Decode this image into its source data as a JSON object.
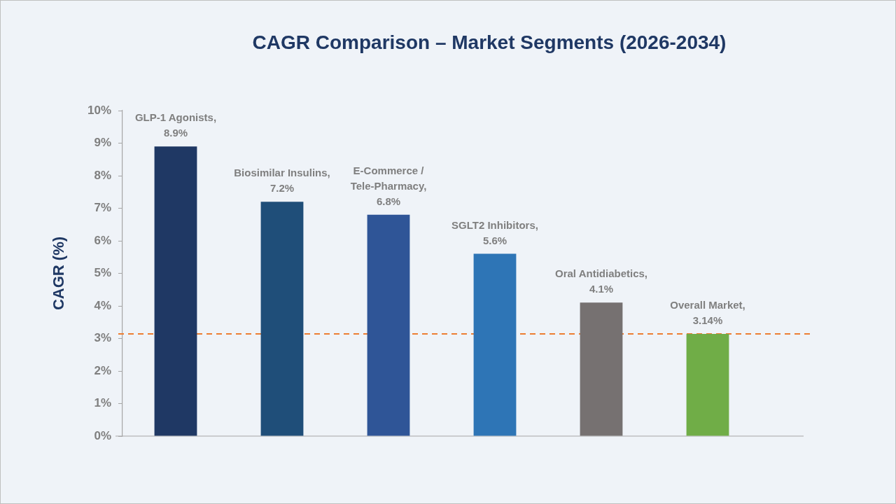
{
  "chart_data": {
    "type": "bar",
    "title": "CAGR Comparison – Market Segments (2026-2034)",
    "ylabel": "CAGR (%)",
    "categories": [
      null,
      null,
      null,
      null,
      null,
      null
    ],
    "values": [
      8.9,
      7.2,
      6.8,
      5.6,
      4.1,
      3.14
    ],
    "colors": [
      "#1f3864",
      "#1f4e79",
      "#2f5597",
      "#2e75b6",
      "#767171",
      "#70ad47"
    ],
    "value_labels": [
      "GLP-1 Agonists, 8.9%",
      "Biosimilar Insulins, 7.2%",
      "E-Commerce / Tele-Pharmacy, 6.8%",
      "SGLT2 Inhibitors, 5.6%",
      "Oral Antidiabetics, 4.1%",
      "Overall Market, 3.14%"
    ],
    "ylim": [
      0,
      10
    ],
    "yticks": [
      {
        "value": 0,
        "label": "0%"
      },
      {
        "value": 1,
        "label": "1%"
      },
      {
        "value": 2,
        "label": "2%"
      },
      {
        "value": 3,
        "label": "3%"
      },
      {
        "value": 4,
        "label": "4%"
      },
      {
        "value": 5,
        "label": "5%"
      },
      {
        "value": 6,
        "label": "6%"
      },
      {
        "value": 7,
        "label": "7%"
      },
      {
        "value": 8,
        "label": "8%"
      },
      {
        "value": 9,
        "label": "9%"
      },
      {
        "value": 10,
        "label": "10%"
      }
    ],
    "ref_lines": [
      {
        "axis": "y",
        "value": 3.14,
        "color": "#ed7d31",
        "line_style": "dashed"
      }
    ],
    "grid": false,
    "tick_labels": "y"
  }
}
